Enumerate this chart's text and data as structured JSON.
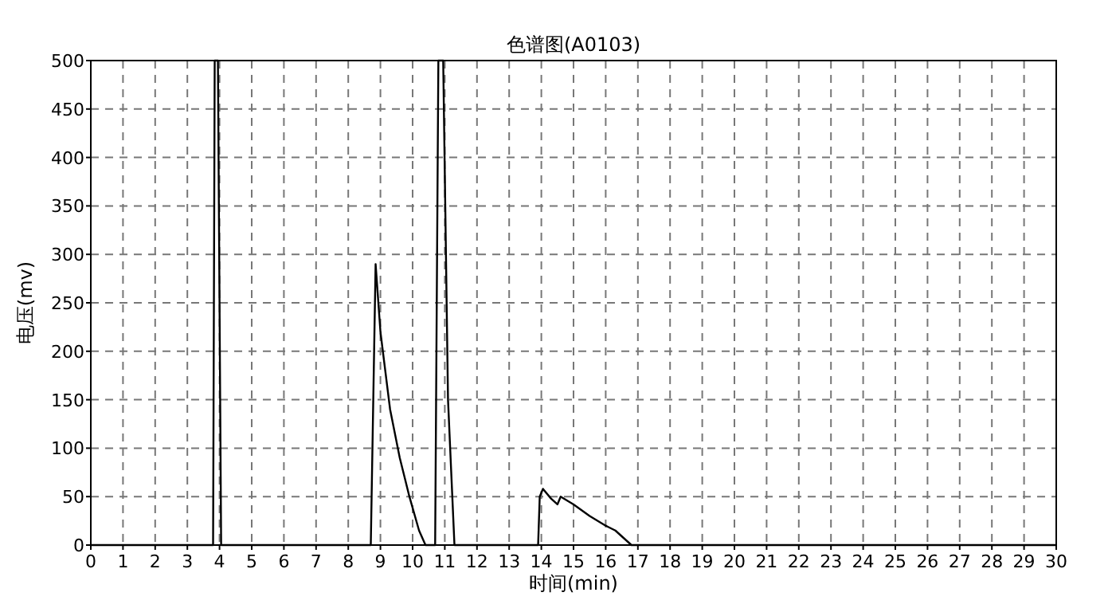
{
  "chart_data": {
    "type": "line",
    "title": "色谱图(A0103)",
    "xlabel": "时间(min)",
    "ylabel": "电压(mv)",
    "xlim": [
      0,
      30
    ],
    "xticks": [
      0,
      1,
      2,
      3,
      4,
      5,
      6,
      7,
      8,
      9,
      10,
      11,
      12,
      13,
      14,
      15,
      16,
      17,
      18,
      19,
      20,
      21,
      22,
      23,
      24,
      25,
      26,
      27,
      28,
      29,
      30
    ],
    "ylim": [
      0,
      500
    ],
    "yticks": [
      0,
      50,
      100,
      150,
      200,
      250,
      300,
      350,
      400,
      450,
      500
    ],
    "grid": true,
    "series": [
      {
        "color": "#000000",
        "x": [
          0,
          3.8,
          3.85,
          3.95,
          4.05,
          8.7,
          8.85,
          9.0,
          9.3,
          9.6,
          9.9,
          10.2,
          10.4,
          10.7,
          10.8,
          10.95,
          11.1,
          11.3,
          13.9,
          13.95,
          14.05,
          14.3,
          14.5,
          14.6,
          15.0,
          15.5,
          16.0,
          16.3,
          16.8,
          30
        ],
        "values": [
          0,
          0,
          500,
          500,
          0,
          0,
          290,
          220,
          140,
          90,
          50,
          15,
          0,
          0,
          500,
          500,
          150,
          0,
          0,
          50,
          58,
          48,
          42,
          50,
          42,
          30,
          20,
          15,
          0,
          0
        ]
      }
    ]
  }
}
